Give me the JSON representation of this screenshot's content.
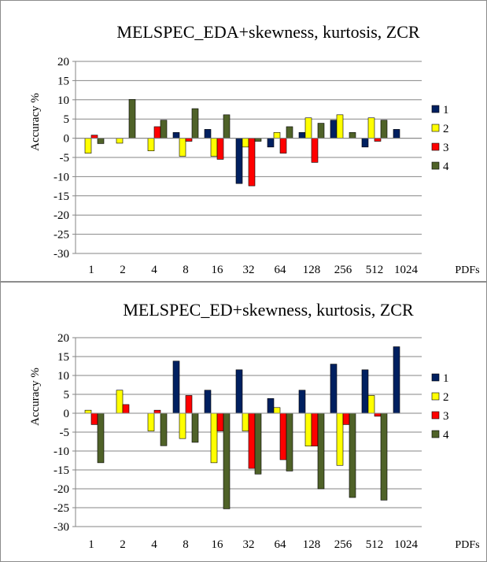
{
  "colors": {
    "series": [
      "#002060",
      "#FFFF00",
      "#FF0000",
      "#4F6228"
    ],
    "gridline": "#868686",
    "axis": "#868686"
  },
  "chart_data": [
    {
      "type": "bar",
      "title": "MELSPEC_EDA+skewness, kurtosis, ZCR",
      "ylabel": "Accuracy %",
      "xlabel": "PDFs",
      "categories": [
        "1",
        "2",
        "4",
        "8",
        "16",
        "32",
        "64",
        "128",
        "256",
        "512",
        "1024"
      ],
      "ylim": [
        -30,
        20
      ],
      "yticks": [
        20,
        15,
        10,
        5,
        0,
        -5,
        -10,
        -15,
        -20,
        -25,
        -30
      ],
      "grid": true,
      "legend_position": "right",
      "series": [
        {
          "name": "1",
          "values": [
            0,
            0,
            0,
            1.5,
            2.3,
            -11.8,
            -2.3,
            1.5,
            4.7,
            -2.3,
            2.3
          ]
        },
        {
          "name": "2",
          "values": [
            -3.9,
            -1.3,
            -3.3,
            -4.7,
            -4.7,
            -2.3,
            1.5,
            5.3,
            6.1,
            5.3,
            0
          ]
        },
        {
          "name": "3",
          "values": [
            0.8,
            0,
            3.0,
            -0.8,
            -5.5,
            -12.4,
            -3.9,
            -6.3,
            0,
            -0.8,
            0
          ]
        },
        {
          "name": "4",
          "values": [
            -1.4,
            10.1,
            4.7,
            7.7,
            6.1,
            -0.8,
            3.0,
            3.9,
            1.5,
            4.7,
            0
          ]
        }
      ]
    },
    {
      "type": "bar",
      "title": "MELSPEC_ED+skewness, kurtosis, ZCR",
      "ylabel": "Accuracy %",
      "xlabel": "PDFs",
      "categories": [
        "1",
        "2",
        "4",
        "8",
        "16",
        "32",
        "64",
        "128",
        "256",
        "512",
        "1024"
      ],
      "ylim": [
        -30,
        20
      ],
      "yticks": [
        20,
        15,
        10,
        5,
        0,
        -5,
        -10,
        -15,
        -20,
        -25,
        -30
      ],
      "grid": true,
      "legend_position": "right",
      "series": [
        {
          "name": "1",
          "values": [
            0,
            0,
            0,
            13.8,
            6.1,
            11.5,
            3.9,
            6.1,
            13.0,
            11.5,
            17.6
          ]
        },
        {
          "name": "2",
          "values": [
            0.8,
            6.1,
            -4.7,
            -6.7,
            -13.1,
            -4.7,
            1.5,
            -8.7,
            -13.8,
            4.7,
            0
          ]
        },
        {
          "name": "3",
          "values": [
            -3.0,
            2.3,
            0.8,
            4.7,
            -4.7,
            -14.6,
            -12.3,
            -8.7,
            -3.0,
            -0.8,
            0
          ]
        },
        {
          "name": "4",
          "values": [
            -13.1,
            0,
            -8.6,
            -7.7,
            -25.3,
            -16.1,
            -15.3,
            -20.0,
            -22.3,
            -23.0,
            0
          ]
        }
      ]
    }
  ]
}
